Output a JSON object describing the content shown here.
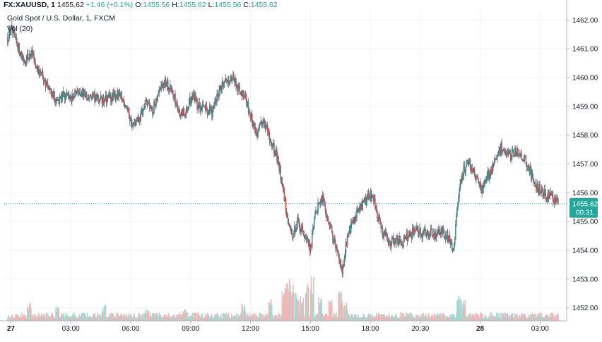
{
  "header": {
    "symbol": "FX:XAUUSD, 1",
    "last": "1455.62",
    "change": "+1.46 (+0.1%)",
    "o_label": "O:",
    "o": "1455.56",
    "h_label": "H:",
    "h": "1455.62",
    "l_label": "L:",
    "l": "1455.56",
    "c_label": "C:",
    "c": "1455.62"
  },
  "legend": {
    "title": "Gold Spot / U.S. Dollar, 1, FXCM",
    "volume": "Vol (20)"
  },
  "price_badge": {
    "price": "1455.62",
    "countdown": "00:31"
  },
  "colors": {
    "up": "#26a69a",
    "down": "#ef5350",
    "grid": "#f0f3fa",
    "axis": "#b2b5be",
    "candle": "#5d606b"
  },
  "chart_data": {
    "type": "candlestick",
    "y_ticks": [
      1452,
      1453,
      1454,
      1455,
      1456,
      1457,
      1458,
      1459,
      1460,
      1461,
      1462
    ],
    "y_tick_labels": [
      "1452.00",
      "1453.00",
      "1454.00",
      "1455.00",
      "1456.00",
      "1457.00",
      "1458.00",
      "1459.00",
      "1460.00",
      "1461.00",
      "1462.00"
    ],
    "ylim": [
      1451.55,
      1462.35
    ],
    "x_ticks": [
      "27",
      "03:00",
      "06:00",
      "09:00",
      "12:00",
      "15:00",
      "18:00",
      "20:30",
      "28",
      "03:00"
    ],
    "x_tick_minutes": [
      0,
      180,
      360,
      540,
      720,
      900,
      1080,
      1230,
      1410,
      1590
    ],
    "x_bold": [
      "27",
      "28"
    ],
    "xlim_minutes": [
      -20,
      1670
    ],
    "last_price": 1455.62,
    "price_path": [
      [
        -10,
        1461.4
      ],
      [
        0,
        1461.7
      ],
      [
        20,
        1461.1
      ],
      [
        40,
        1460.6
      ],
      [
        60,
        1460.9
      ],
      [
        80,
        1460.4
      ],
      [
        100,
        1459.9
      ],
      [
        120,
        1459.5
      ],
      [
        140,
        1459.2
      ],
      [
        160,
        1459.4
      ],
      [
        180,
        1459.3
      ],
      [
        200,
        1459.5
      ],
      [
        240,
        1459.3
      ],
      [
        280,
        1459.2
      ],
      [
        320,
        1459.4
      ],
      [
        345,
        1459.1
      ],
      [
        365,
        1458.3
      ],
      [
        385,
        1458.5
      ],
      [
        405,
        1459.1
      ],
      [
        425,
        1458.8
      ],
      [
        445,
        1459.6
      ],
      [
        465,
        1459.9
      ],
      [
        485,
        1459.5
      ],
      [
        505,
        1458.8
      ],
      [
        525,
        1458.7
      ],
      [
        545,
        1459.4
      ],
      [
        565,
        1459.0
      ],
      [
        585,
        1458.9
      ],
      [
        605,
        1458.8
      ],
      [
        625,
        1459.5
      ],
      [
        645,
        1459.9
      ],
      [
        665,
        1460.0
      ],
      [
        685,
        1459.6
      ],
      [
        705,
        1459.3
      ],
      [
        725,
        1458.5
      ],
      [
        740,
        1458.0
      ],
      [
        760,
        1458.6
      ],
      [
        780,
        1457.8
      ],
      [
        800,
        1457.2
      ],
      [
        815,
        1456.4
      ],
      [
        830,
        1455.1
      ],
      [
        845,
        1454.4
      ],
      [
        860,
        1455.0
      ],
      [
        880,
        1454.6
      ],
      [
        900,
        1454.0
      ],
      [
        915,
        1455.3
      ],
      [
        935,
        1455.8
      ],
      [
        955,
        1455.0
      ],
      [
        975,
        1454.2
      ],
      [
        995,
        1453.2
      ],
      [
        1005,
        1454.1
      ],
      [
        1025,
        1455.0
      ],
      [
        1045,
        1455.4
      ],
      [
        1065,
        1455.7
      ],
      [
        1085,
        1456.0
      ],
      [
        1100,
        1455.3
      ],
      [
        1115,
        1454.7
      ],
      [
        1135,
        1454.2
      ],
      [
        1155,
        1454.4
      ],
      [
        1175,
        1454.3
      ],
      [
        1195,
        1454.5
      ],
      [
        1215,
        1454.7
      ],
      [
        1235,
        1454.6
      ],
      [
        1255,
        1454.6
      ],
      [
        1275,
        1454.5
      ],
      [
        1295,
        1454.7
      ],
      [
        1315,
        1454.4
      ],
      [
        1330,
        1454.0
      ],
      [
        1345,
        1455.9
      ],
      [
        1360,
        1456.8
      ],
      [
        1375,
        1457.1
      ],
      [
        1395,
        1456.6
      ],
      [
        1415,
        1456.1
      ],
      [
        1435,
        1456.6
      ],
      [
        1455,
        1457.1
      ],
      [
        1475,
        1457.6
      ],
      [
        1495,
        1457.2
      ],
      [
        1515,
        1457.5
      ],
      [
        1535,
        1457.3
      ],
      [
        1555,
        1456.9
      ],
      [
        1575,
        1456.3
      ],
      [
        1595,
        1456.0
      ],
      [
        1615,
        1455.9
      ],
      [
        1630,
        1455.8
      ],
      [
        1645,
        1455.62
      ]
    ],
    "volume_spikes": [
      [
        55,
        0.4
      ],
      [
        140,
        0.3
      ],
      [
        280,
        0.35
      ],
      [
        410,
        0.3
      ],
      [
        520,
        0.3
      ],
      [
        700,
        0.35
      ],
      [
        780,
        0.45
      ],
      [
        820,
        0.7
      ],
      [
        832,
        1.0
      ],
      [
        845,
        0.8
      ],
      [
        860,
        0.7
      ],
      [
        875,
        0.55
      ],
      [
        890,
        0.75
      ],
      [
        905,
        0.9
      ],
      [
        930,
        0.5
      ],
      [
        960,
        0.45
      ],
      [
        990,
        0.6
      ],
      [
        1005,
        0.4
      ],
      [
        1345,
        0.55
      ],
      [
        1360,
        0.45
      ]
    ]
  }
}
